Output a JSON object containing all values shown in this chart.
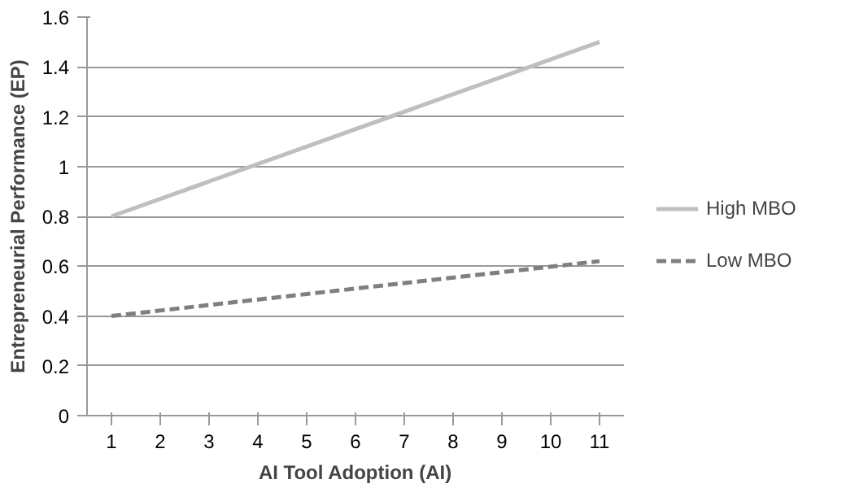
{
  "chart_data": {
    "type": "line",
    "xlabel": "AI Tool Adoption (AI)",
    "ylabel": "Entrepreneurial Performance (EP)",
    "x": [
      1,
      11
    ],
    "xlim": [
      0.5,
      11.5
    ],
    "xticks": [
      1,
      2,
      3,
      4,
      5,
      6,
      7,
      8,
      9,
      10,
      11
    ],
    "ylim": [
      0,
      1.6
    ],
    "yticks": [
      0,
      0.2,
      0.4,
      0.6,
      0.8,
      1,
      1.2,
      1.4,
      1.6
    ],
    "grid": "y",
    "legend": "right",
    "series": [
      {
        "name": "High MBO",
        "color": "#bfbfbf",
        "line_style": "solid",
        "values": [
          0.8,
          1.5
        ]
      },
      {
        "name": "Low MBO",
        "color": "#7f7f7f",
        "line_style": "dashed",
        "values": [
          0.4,
          0.62
        ]
      }
    ]
  }
}
